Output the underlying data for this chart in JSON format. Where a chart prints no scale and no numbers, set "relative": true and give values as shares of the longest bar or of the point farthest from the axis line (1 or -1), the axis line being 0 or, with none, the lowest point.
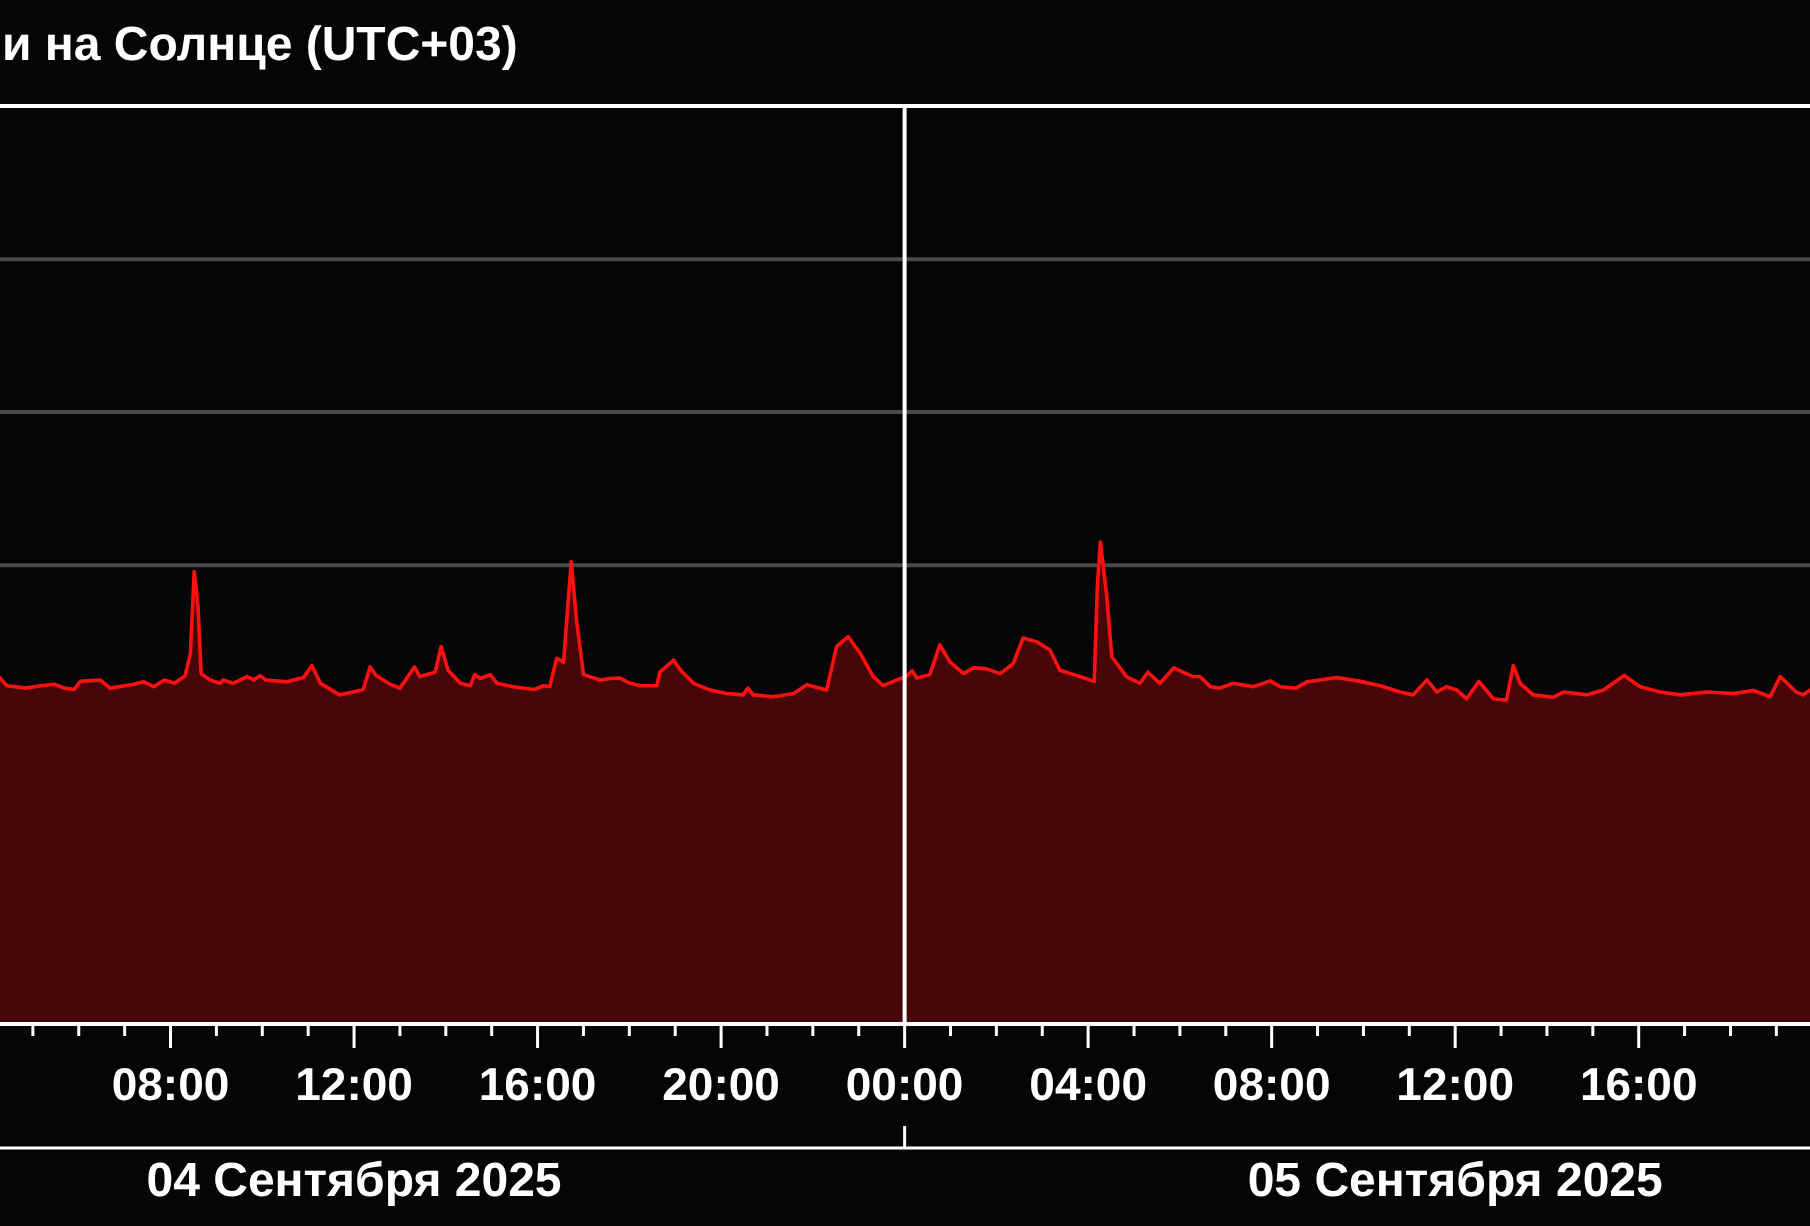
{
  "chart_data": {
    "type": "area",
    "title": "и на Солнце (UTC+03)",
    "relative": true,
    "color": "#ff1010",
    "x": [
      "2025-09-04T04:17",
      "2025-09-04T04:26",
      "2025-09-04T04:51",
      "2025-09-04T05:10",
      "2025-09-04T05:28",
      "2025-09-04T05:41",
      "2025-09-04T05:54",
      "2025-09-04T06:02",
      "2025-09-04T06:28",
      "2025-09-04T06:41",
      "2025-09-04T07:12",
      "2025-09-04T07:25",
      "2025-09-04T07:38",
      "2025-09-04T07:52",
      "2025-09-04T08:05",
      "2025-09-04T08:19",
      "2025-09-04T08:26",
      "2025-09-04T08:31",
      "2025-09-04T08:36",
      "2025-09-04T08:40",
      "2025-09-04T08:52",
      "2025-09-04T09:05",
      "2025-09-04T09:09",
      "2025-09-04T09:22",
      "2025-09-04T09:40",
      "2025-09-04T09:49",
      "2025-09-04T09:57",
      "2025-09-04T10:05",
      "2025-09-04T10:32",
      "2025-09-04T10:54",
      "2025-09-04T11:05",
      "2025-09-04T11:16",
      "2025-09-04T11:41",
      "2025-09-04T11:59",
      "2025-09-04T12:12",
      "2025-09-04T12:21",
      "2025-09-04T12:29",
      "2025-09-04T12:47",
      "2025-09-04T13:00",
      "2025-09-04T13:13",
      "2025-09-04T13:19",
      "2025-09-04T13:26",
      "2025-09-04T13:46",
      "2025-09-04T13:54",
      "2025-09-04T14:03",
      "2025-09-04T14:19",
      "2025-09-04T14:32",
      "2025-09-04T14:38",
      "2025-09-04T14:45",
      "2025-09-04T14:58",
      "2025-09-04T15:07",
      "2025-09-04T15:28",
      "2025-09-04T15:55",
      "2025-09-04T16:08",
      "2025-09-04T16:16",
      "2025-09-04T16:25",
      "2025-09-04T16:34",
      "2025-09-04T16:44",
      "2025-09-04T16:51",
      "2025-09-04T17:00",
      "2025-09-04T17:22",
      "2025-09-04T17:35",
      "2025-09-04T17:48",
      "2025-09-04T18:01",
      "2025-09-04T18:14",
      "2025-09-04T18:36",
      "2025-09-04T18:40",
      "2025-09-04T18:58",
      "2025-09-04T19:07",
      "2025-09-04T19:24",
      "2025-09-04T19:46",
      "2025-09-04T20:07",
      "2025-09-04T20:29",
      "2025-09-04T20:35",
      "2025-09-04T20:42",
      "2025-09-04T21:08",
      "2025-09-04T21:35",
      "2025-09-04T21:52",
      "2025-09-04T22:18",
      "2025-09-04T22:31",
      "2025-09-04T22:46",
      "2025-09-04T23:02",
      "2025-09-04T23:19",
      "2025-09-04T23:32",
      "2025-09-04T23:50",
      "2025-09-05T00:02",
      "2025-09-05T00:10",
      "2025-09-05T00:16",
      "2025-09-05T00:33",
      "2025-09-05T00:46",
      "2025-09-05T00:59",
      "2025-09-05T01:17",
      "2025-09-05T01:30",
      "2025-09-05T01:47",
      "2025-09-05T02:05",
      "2025-09-05T02:22",
      "2025-09-05T02:35",
      "2025-09-05T02:53",
      "2025-09-05T03:10",
      "2025-09-05T03:23",
      "2025-09-05T03:49",
      "2025-09-05T04:08",
      "2025-09-05T04:12",
      "2025-09-05T04:16",
      "2025-09-05T04:24",
      "2025-09-05T04:31",
      "2025-09-05T04:50",
      "2025-09-05T05:08",
      "2025-09-05T05:18",
      "2025-09-05T05:34",
      "2025-09-05T05:52",
      "2025-09-05T06:17",
      "2025-09-05T06:26",
      "2025-09-05T06:40",
      "2025-09-05T06:52",
      "2025-09-05T07:10",
      "2025-09-05T07:36",
      "2025-09-05T07:58",
      "2025-09-05T08:11",
      "2025-09-05T08:32",
      "2025-09-05T08:46",
      "2025-09-05T09:03",
      "2025-09-05T09:25",
      "2025-09-05T09:56",
      "2025-09-05T10:22",
      "2025-09-05T10:48",
      "2025-09-05T11:05",
      "2025-09-05T11:23",
      "2025-09-05T11:36",
      "2025-09-05T11:49",
      "2025-09-05T12:02",
      "2025-09-05T12:15",
      "2025-09-05T12:31",
      "2025-09-05T12:50",
      "2025-09-05T13:07",
      "2025-09-05T13:16",
      "2025-09-05T13:25",
      "2025-09-05T13:42",
      "2025-09-05T14:08",
      "2025-09-05T14:22",
      "2025-09-05T14:52",
      "2025-09-05T15:14",
      "2025-09-05T15:41",
      "2025-09-05T16:02",
      "2025-09-05T16:28",
      "2025-09-05T16:54",
      "2025-09-05T17:29",
      "2025-09-05T18:04",
      "2025-09-05T18:30",
      "2025-09-05T18:52",
      "2025-09-05T19:05",
      "2025-09-05T19:26",
      "2025-09-05T19:35",
      "2025-09-05T19:44"
    ],
    "values": [
      0.718,
      0.702,
      0.697,
      0.702,
      0.705,
      0.697,
      0.694,
      0.711,
      0.714,
      0.697,
      0.705,
      0.71,
      0.7,
      0.714,
      0.707,
      0.722,
      0.769,
      0.939,
      0.866,
      0.727,
      0.714,
      0.707,
      0.714,
      0.707,
      0.721,
      0.714,
      0.723,
      0.714,
      0.71,
      0.719,
      0.744,
      0.707,
      0.683,
      0.689,
      0.694,
      0.741,
      0.723,
      0.705,
      0.697,
      0.727,
      0.741,
      0.721,
      0.73,
      0.783,
      0.734,
      0.707,
      0.702,
      0.725,
      0.717,
      0.725,
      0.707,
      0.7,
      0.694,
      0.702,
      0.7,
      0.759,
      0.751,
      0.959,
      0.838,
      0.725,
      0.714,
      0.717,
      0.718,
      0.707,
      0.702,
      0.702,
      0.73,
      0.755,
      0.734,
      0.707,
      0.693,
      0.686,
      0.683,
      0.697,
      0.683,
      0.679,
      0.686,
      0.704,
      0.693,
      0.783,
      0.804,
      0.769,
      0.721,
      0.702,
      0.714,
      0.721,
      0.733,
      0.718,
      0.725,
      0.787,
      0.752,
      0.727,
      0.739,
      0.737,
      0.727,
      0.748,
      0.801,
      0.793,
      0.776,
      0.734,
      0.721,
      0.711,
      0.907,
      1,
      0.893,
      0.762,
      0.721,
      0.707,
      0.73,
      0.707,
      0.739,
      0.721,
      0.721,
      0.7,
      0.697,
      0.707,
      0.7,
      0.712,
      0.7,
      0.697,
      0.71,
      0.714,
      0.719,
      0.711,
      0.702,
      0.689,
      0.683,
      0.714,
      0.689,
      0.7,
      0.693,
      0.675,
      0.711,
      0.675,
      0.672,
      0.744,
      0.707,
      0.683,
      0.678,
      0.689,
      0.683,
      0.693,
      0.723,
      0.7,
      0.689,
      0.683,
      0.689,
      0.686,
      0.692,
      0.679,
      0.721,
      0.689,
      0.683,
      0.693
    ],
    "xlim": [
      "2025-09-04T04:17",
      "2025-09-05T19:44"
    ],
    "xticks": [
      {
        "value": "2025-09-04T05:00",
        "label": null
      },
      {
        "value": "2025-09-04T06:00",
        "label": null
      },
      {
        "value": "2025-09-04T07:00",
        "label": null
      },
      {
        "value": "2025-09-04T08:00",
        "label": "08:00"
      },
      {
        "value": "2025-09-04T09:00",
        "label": null
      },
      {
        "value": "2025-09-04T10:00",
        "label": null
      },
      {
        "value": "2025-09-04T11:00",
        "label": null
      },
      {
        "value": "2025-09-04T12:00",
        "label": "12:00"
      },
      {
        "value": "2025-09-04T13:00",
        "label": null
      },
      {
        "value": "2025-09-04T14:00",
        "label": null
      },
      {
        "value": "2025-09-04T15:00",
        "label": null
      },
      {
        "value": "2025-09-04T16:00",
        "label": "16:00"
      },
      {
        "value": "2025-09-04T17:00",
        "label": null
      },
      {
        "value": "2025-09-04T18:00",
        "label": null
      },
      {
        "value": "2025-09-04T19:00",
        "label": null
      },
      {
        "value": "2025-09-04T20:00",
        "label": "20:00"
      },
      {
        "value": "2025-09-04T21:00",
        "label": null
      },
      {
        "value": "2025-09-04T22:00",
        "label": null
      },
      {
        "value": "2025-09-04T23:00",
        "label": null
      },
      {
        "value": "2025-09-05T00:00",
        "label": "00:00"
      },
      {
        "value": "2025-09-05T01:00",
        "label": null
      },
      {
        "value": "2025-09-05T02:00",
        "label": null
      },
      {
        "value": "2025-09-05T03:00",
        "label": null
      },
      {
        "value": "2025-09-05T04:00",
        "label": "04:00"
      },
      {
        "value": "2025-09-05T05:00",
        "label": null
      },
      {
        "value": "2025-09-05T06:00",
        "label": null
      },
      {
        "value": "2025-09-05T07:00",
        "label": null
      },
      {
        "value": "2025-09-05T08:00",
        "label": "08:00"
      },
      {
        "value": "2025-09-05T09:00",
        "label": null
      },
      {
        "value": "2025-09-05T10:00",
        "label": null
      },
      {
        "value": "2025-09-05T11:00",
        "label": null
      },
      {
        "value": "2025-09-05T12:00",
        "label": "12:00"
      },
      {
        "value": "2025-09-05T13:00",
        "label": null
      },
      {
        "value": "2025-09-05T14:00",
        "label": null
      },
      {
        "value": "2025-09-05T15:00",
        "label": null
      },
      {
        "value": "2025-09-05T16:00",
        "label": "16:00"
      },
      {
        "value": "2025-09-05T17:00",
        "label": null
      },
      {
        "value": "2025-09-05T18:00",
        "label": null
      },
      {
        "value": "2025-09-05T19:00",
        "label": null
      }
    ],
    "tick_labels": "x",
    "ref_lines": [
      {
        "axis": "x",
        "value": "2025-09-05T00:00",
        "color": "#ffffff"
      },
      {
        "axis": "y",
        "value": 0.952,
        "color": "#4a4a4a"
      },
      {
        "axis": "y",
        "value": 1.27,
        "color": "#4a4a4a"
      },
      {
        "axis": "y",
        "value": 1.587,
        "color": "#4a4a4a"
      }
    ],
    "annotations": [
      "04 Сентября 2025",
      "05 Сентября 2025"
    ]
  }
}
